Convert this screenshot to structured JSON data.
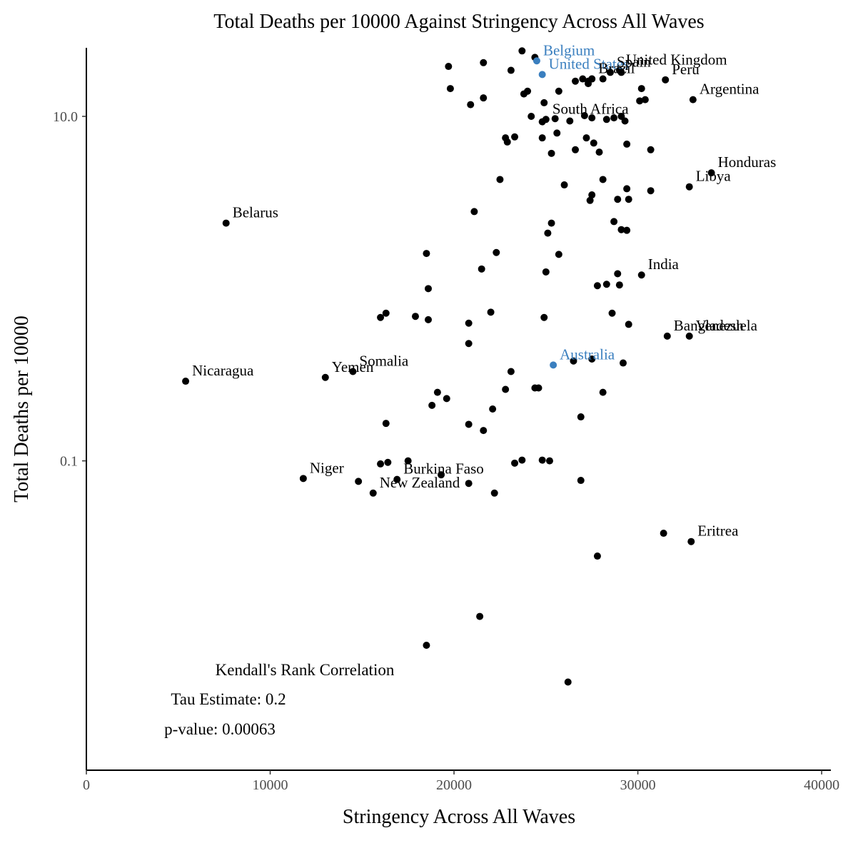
{
  "chart_data": {
    "type": "scatter",
    "title": "Total Deaths per 10000 Against Stringency Across All Waves",
    "xlabel": "Stringency Across All Waves",
    "ylabel": "Total Deaths per 10000",
    "xlim": [
      0,
      40500
    ],
    "ylim": [
      0.0016,
      25
    ],
    "y_scale": "log10",
    "x_ticks": [
      0,
      10000,
      20000,
      30000,
      40000
    ],
    "x_tick_labels": [
      "0",
      "10000",
      "20000",
      "30000",
      "40000"
    ],
    "y_ticks": [
      0.1,
      10
    ],
    "y_tick_labels": [
      "0.1",
      "10.0"
    ],
    "grid": false,
    "colors": {
      "point": "#000000",
      "highlight": "#3a7fbf"
    },
    "annotations": [
      "Kendall's Rank Correlation",
      "Tau Estimate: 0.2",
      "p-value: 0.00063"
    ],
    "labeled_points": [
      {
        "label": "Belgium",
        "x": 24500,
        "y": 21,
        "highlight": true
      },
      {
        "label": "United States",
        "x": 24800,
        "y": 17.5,
        "highlight": true
      },
      {
        "label": "United Kingdom",
        "x": 29000,
        "y": 18.5,
        "highlight": false
      },
      {
        "label": "Spain",
        "x": 28500,
        "y": 18,
        "highlight": false
      },
      {
        "label": "Brazil",
        "x": 27500,
        "y": 16.5,
        "highlight": false
      },
      {
        "label": "Peru",
        "x": 31500,
        "y": 16.3,
        "highlight": false
      },
      {
        "label": "Argentina",
        "x": 33000,
        "y": 12.5,
        "highlight": false
      },
      {
        "label": "South Africa",
        "x": 25000,
        "y": 9.6,
        "highlight": false
      },
      {
        "label": "Honduras",
        "x": 34000,
        "y": 4.7,
        "highlight": false
      },
      {
        "label": "Libya",
        "x": 32800,
        "y": 3.9,
        "highlight": false
      },
      {
        "label": "Belarus",
        "x": 7600,
        "y": 2.4,
        "highlight": false
      },
      {
        "label": "India",
        "x": 30200,
        "y": 1.2,
        "highlight": false
      },
      {
        "label": "Bangladesh",
        "x": 31600,
        "y": 0.53,
        "highlight": false
      },
      {
        "label": "Venezuela",
        "x": 32800,
        "y": 0.53,
        "highlight": false
      },
      {
        "label": "Australia",
        "x": 25400,
        "y": 0.36,
        "highlight": true
      },
      {
        "label": "Somalia",
        "x": 14500,
        "y": 0.33,
        "highlight": false
      },
      {
        "label": "Yemen",
        "x": 13000,
        "y": 0.305,
        "highlight": false
      },
      {
        "label": "Nicaragua",
        "x": 5400,
        "y": 0.29,
        "highlight": false
      },
      {
        "label": "Niger",
        "x": 11800,
        "y": 0.079,
        "highlight": false
      },
      {
        "label": "Burkina Faso",
        "x": 16900,
        "y": 0.078,
        "highlight": false
      },
      {
        "label": "New Zealand",
        "x": 15600,
        "y": 0.065,
        "highlight": false
      },
      {
        "label": "Eritrea",
        "x": 32900,
        "y": 0.034,
        "highlight": false
      }
    ],
    "points": [
      [
        23700,
        24
      ],
      [
        24400,
        22
      ],
      [
        21600,
        20.5
      ],
      [
        19700,
        19.5
      ],
      [
        23100,
        18.5
      ],
      [
        26600,
        16
      ],
      [
        27000,
        16.5
      ],
      [
        27300,
        15.5
      ],
      [
        28100,
        16.5
      ],
      [
        29100,
        18
      ],
      [
        27500,
        16.5
      ],
      [
        27300,
        16
      ],
      [
        19800,
        14.5
      ],
      [
        25700,
        14
      ],
      [
        24000,
        14
      ],
      [
        23800,
        13.5
      ],
      [
        21600,
        12.8
      ],
      [
        20900,
        11.7
      ],
      [
        24900,
        12
      ],
      [
        30200,
        14.5
      ],
      [
        30400,
        12.5
      ],
      [
        30100,
        12.3
      ],
      [
        29100,
        10
      ],
      [
        28700,
        9.8
      ],
      [
        29300,
        9.4
      ],
      [
        28300,
        9.6
      ],
      [
        27500,
        9.8
      ],
      [
        27100,
        10.1
      ],
      [
        26300,
        9.4
      ],
      [
        25500,
        9.7
      ],
      [
        24800,
        9.3
      ],
      [
        24200,
        10
      ],
      [
        25600,
        8
      ],
      [
        23300,
        7.6
      ],
      [
        22800,
        7.5
      ],
      [
        22900,
        7.1
      ],
      [
        24800,
        7.5
      ],
      [
        27200,
        7.5
      ],
      [
        27600,
        7
      ],
      [
        29400,
        6.9
      ],
      [
        30700,
        6.4
      ],
      [
        26600,
        6.4
      ],
      [
        27900,
        6.2
      ],
      [
        25300,
        6.1
      ],
      [
        22500,
        4.3
      ],
      [
        28100,
        4.3
      ],
      [
        26000,
        4
      ],
      [
        29400,
        3.8
      ],
      [
        30700,
        3.7
      ],
      [
        27500,
        3.5
      ],
      [
        28900,
        3.3
      ],
      [
        29500,
        3.3
      ],
      [
        27400,
        3.25
      ],
      [
        21100,
        2.8
      ],
      [
        28700,
        2.45
      ],
      [
        25300,
        2.4
      ],
      [
        29100,
        2.2
      ],
      [
        29400,
        2.18
      ],
      [
        25100,
        2.1
      ],
      [
        18500,
        1.6
      ],
      [
        22300,
        1.62
      ],
      [
        25700,
        1.58
      ],
      [
        21500,
        1.3
      ],
      [
        25000,
        1.25
      ],
      [
        28900,
        1.22
      ],
      [
        28300,
        1.06
      ],
      [
        27800,
        1.04
      ],
      [
        29000,
        1.05
      ],
      [
        18600,
        1.0
      ],
      [
        16300,
        0.72
      ],
      [
        16000,
        0.68
      ],
      [
        17900,
        0.69
      ],
      [
        18600,
        0.66
      ],
      [
        22000,
        0.73
      ],
      [
        24900,
        0.68
      ],
      [
        28600,
        0.72
      ],
      [
        20800,
        0.63
      ],
      [
        29500,
        0.62
      ],
      [
        20800,
        0.48
      ],
      [
        27500,
        0.39
      ],
      [
        26500,
        0.38
      ],
      [
        29200,
        0.37
      ],
      [
        23100,
        0.33
      ],
      [
        22800,
        0.26
      ],
      [
        24600,
        0.265
      ],
      [
        24400,
        0.265
      ],
      [
        19100,
        0.25
      ],
      [
        28100,
        0.25
      ],
      [
        19600,
        0.23
      ],
      [
        18800,
        0.21
      ],
      [
        22100,
        0.2
      ],
      [
        26900,
        0.18
      ],
      [
        16300,
        0.165
      ],
      [
        20800,
        0.163
      ],
      [
        21600,
        0.15
      ],
      [
        17500,
        0.1
      ],
      [
        16400,
        0.098
      ],
      [
        16000,
        0.096
      ],
      [
        23700,
        0.101
      ],
      [
        24800,
        0.101
      ],
      [
        25200,
        0.1
      ],
      [
        23300,
        0.097
      ],
      [
        19300,
        0.083
      ],
      [
        20800,
        0.074
      ],
      [
        14800,
        0.076
      ],
      [
        26900,
        0.077
      ],
      [
        22200,
        0.065
      ],
      [
        31400,
        0.038
      ],
      [
        27800,
        0.028
      ],
      [
        21400,
        0.0125
      ],
      [
        18500,
        0.0085
      ],
      [
        26200,
        0.0052
      ]
    ]
  }
}
